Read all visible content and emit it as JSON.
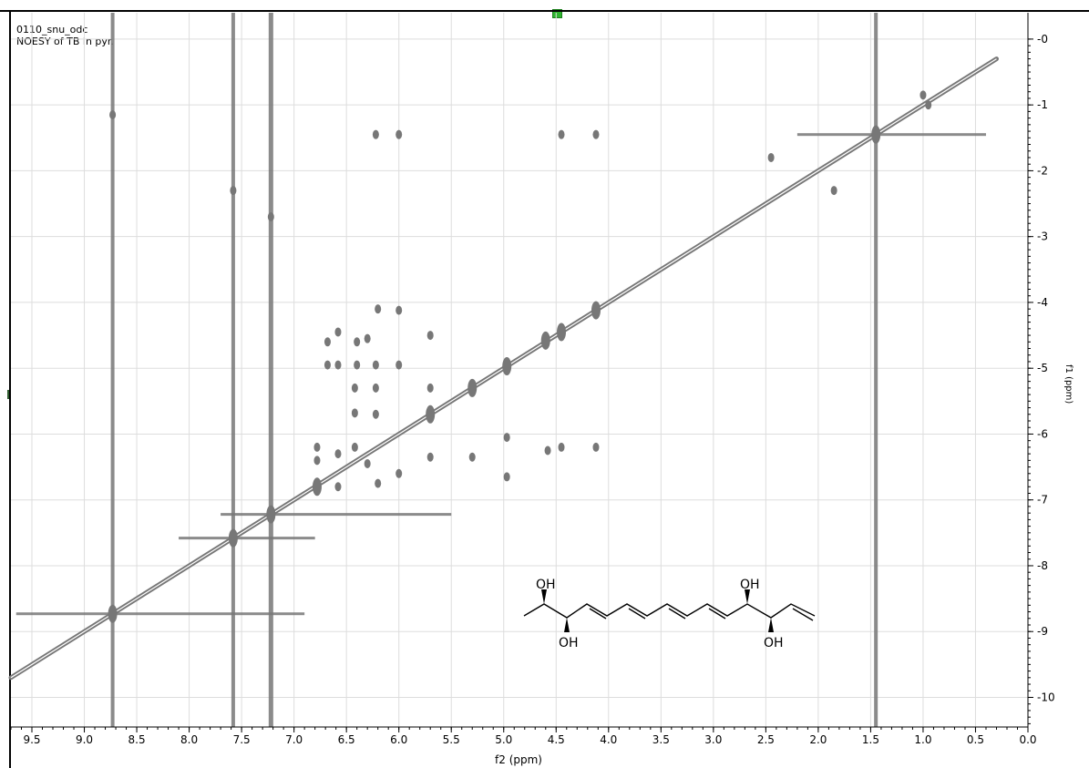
{
  "header": {
    "line1": "0110_snu_odc",
    "line2": "NOESY of TB in pyr."
  },
  "colors": {
    "peak": "#777777",
    "grid": "#dddddd",
    "frame": "#000000",
    "marker_green": "#2fb52f"
  },
  "molecule": {
    "oh_labels": [
      "OH",
      "OH",
      "OH",
      "OH"
    ]
  },
  "chart_data": {
    "type": "scatter",
    "title": "",
    "xlabel": "f2 (ppm)",
    "ylabel": "f1 (ppm)",
    "xlim": [
      9.7,
      0.0
    ],
    "ylim": [
      -0.4,
      10.45
    ],
    "x_ticks": [
      "9.5",
      "9.0",
      "8.5",
      "8.0",
      "7.5",
      "7.0",
      "6.5",
      "6.0",
      "5.5",
      "5.0",
      "4.5",
      "4.0",
      "3.5",
      "3.0",
      "2.5",
      "2.0",
      "1.5",
      "1.0",
      "0.5",
      "0.0"
    ],
    "y_ticks": [
      "0",
      "1",
      "2",
      "3",
      "4",
      "5",
      "6",
      "7",
      "8",
      "9",
      "10"
    ],
    "x_tick_values": [
      9.5,
      9.0,
      8.5,
      8.0,
      7.5,
      7.0,
      6.5,
      6.0,
      5.5,
      5.0,
      4.5,
      4.0,
      3.5,
      3.0,
      2.5,
      2.0,
      1.5,
      1.0,
      0.5,
      0.0
    ],
    "y_tick_values": [
      0,
      1,
      2,
      3,
      4,
      5,
      6,
      7,
      8,
      9,
      10
    ],
    "grid": true,
    "diagonal": {
      "x": [
        9.7,
        0.3
      ],
      "y": [
        9.7,
        0.3
      ]
    },
    "solvent_streaks": [
      8.73,
      7.58,
      7.22,
      1.45
    ],
    "series": [
      {
        "points": [
          {
            "x": 8.73,
            "y": 8.73
          },
          {
            "x": 7.58,
            "y": 7.58
          },
          {
            "x": 7.22,
            "y": 7.22
          },
          {
            "x": 1.45,
            "y": 1.45
          },
          {
            "x": 8.73,
            "y": 1.15
          },
          {
            "x": 7.58,
            "y": 2.3
          },
          {
            "x": 7.22,
            "y": 2.7
          },
          {
            "x": 6.22,
            "y": 1.45
          },
          {
            "x": 6.0,
            "y": 1.45
          },
          {
            "x": 4.45,
            "y": 1.45
          },
          {
            "x": 4.12,
            "y": 1.45
          },
          {
            "x": 6.68,
            "y": 4.6
          },
          {
            "x": 6.58,
            "y": 4.45
          },
          {
            "x": 6.4,
            "y": 4.6
          },
          {
            "x": 6.3,
            "y": 4.55
          },
          {
            "x": 6.2,
            "y": 4.1
          },
          {
            "x": 6.0,
            "y": 4.12
          },
          {
            "x": 5.7,
            "y": 4.5
          },
          {
            "x": 6.68,
            "y": 4.95
          },
          {
            "x": 6.58,
            "y": 4.95
          },
          {
            "x": 6.4,
            "y": 4.95
          },
          {
            "x": 6.22,
            "y": 4.95
          },
          {
            "x": 6.0,
            "y": 4.95
          },
          {
            "x": 6.42,
            "y": 5.3
          },
          {
            "x": 6.22,
            "y": 5.3
          },
          {
            "x": 5.7,
            "y": 5.3
          },
          {
            "x": 6.42,
            "y": 5.68
          },
          {
            "x": 6.22,
            "y": 5.7
          },
          {
            "x": 5.7,
            "y": 5.7
          },
          {
            "x": 5.3,
            "y": 5.3
          },
          {
            "x": 6.78,
            "y": 6.2
          },
          {
            "x": 6.78,
            "y": 6.4
          },
          {
            "x": 6.58,
            "y": 6.3
          },
          {
            "x": 6.42,
            "y": 6.2
          },
          {
            "x": 6.3,
            "y": 6.45
          },
          {
            "x": 6.2,
            "y": 6.75
          },
          {
            "x": 6.0,
            "y": 6.6
          },
          {
            "x": 5.7,
            "y": 6.35
          },
          {
            "x": 5.3,
            "y": 6.35
          },
          {
            "x": 4.97,
            "y": 6.05
          },
          {
            "x": 4.97,
            "y": 6.65
          },
          {
            "x": 4.58,
            "y": 6.25
          },
          {
            "x": 4.45,
            "y": 6.2
          },
          {
            "x": 4.12,
            "y": 6.2
          },
          {
            "x": 6.78,
            "y": 6.8
          },
          {
            "x": 6.58,
            "y": 6.8
          },
          {
            "x": 4.97,
            "y": 4.97
          },
          {
            "x": 4.6,
            "y": 4.58
          },
          {
            "x": 4.45,
            "y": 4.45
          },
          {
            "x": 4.12,
            "y": 4.12
          },
          {
            "x": 1.0,
            "y": 0.85
          },
          {
            "x": 0.95,
            "y": 1.0
          },
          {
            "x": 2.45,
            "y": 1.8
          },
          {
            "x": 1.85,
            "y": 2.3
          }
        ]
      }
    ]
  }
}
